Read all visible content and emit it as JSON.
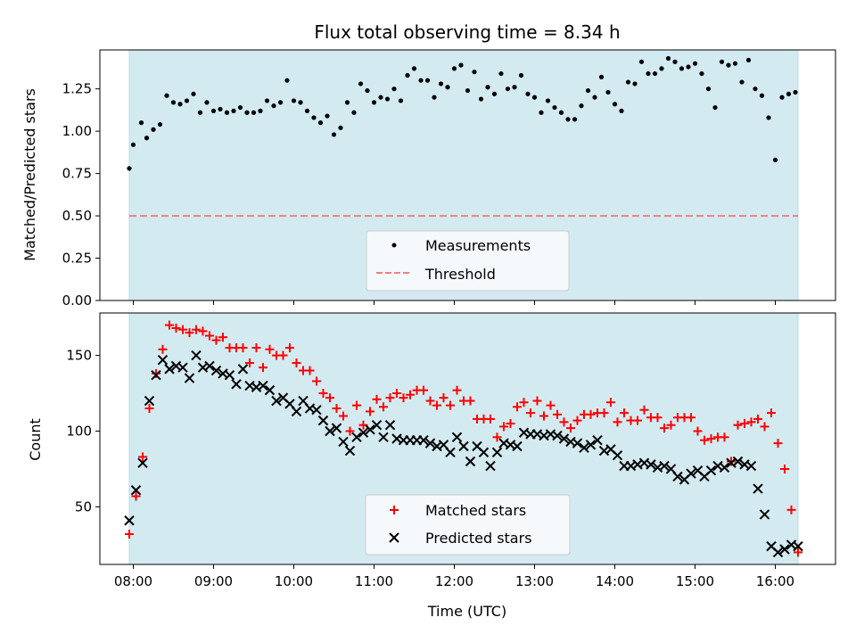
{
  "chart_data": [
    {
      "type": "scatter",
      "title": "Flux total observing time = 8.34 h",
      "xlabel": "",
      "ylabel": "Matched/Predicted stars",
      "xlim": [
        "07:35",
        "16:45"
      ],
      "ylim": [
        0,
        1.48
      ],
      "yticks": [
        "0.00",
        "0.25",
        "0.50",
        "0.75",
        "1.00",
        "1.25"
      ],
      "observing_span": [
        "07:57",
        "16:17"
      ],
      "span_color": "#d3eaf0",
      "legend_position": "bottom-center",
      "series": [
        {
          "name": "Measurements",
          "marker": "dot",
          "color": "#000000",
          "x": [
            "07:57",
            "08:00",
            "08:06",
            "08:10",
            "08:15",
            "08:20",
            "08:25",
            "08:30",
            "08:35",
            "08:40",
            "08:45",
            "08:50",
            "08:55",
            "09:00",
            "09:05",
            "09:10",
            "09:15",
            "09:20",
            "09:25",
            "09:30",
            "09:35",
            "09:40",
            "09:45",
            "09:50",
            "09:55",
            "10:00",
            "10:05",
            "10:10",
            "10:15",
            "10:20",
            "10:25",
            "10:30",
            "10:35",
            "10:40",
            "10:45",
            "10:50",
            "10:55",
            "11:00",
            "11:05",
            "11:10",
            "11:15",
            "11:20",
            "11:25",
            "11:30",
            "11:35",
            "11:40",
            "11:45",
            "11:50",
            "11:55",
            "12:00",
            "12:05",
            "12:10",
            "12:15",
            "12:20",
            "12:25",
            "12:30",
            "12:35",
            "12:40",
            "12:45",
            "12:50",
            "12:55",
            "13:00",
            "13:05",
            "13:10",
            "13:15",
            "13:20",
            "13:25",
            "13:30",
            "13:35",
            "13:40",
            "13:45",
            "13:50",
            "13:55",
            "14:00",
            "14:05",
            "14:10",
            "14:15",
            "14:20",
            "14:25",
            "14:30",
            "14:35",
            "14:40",
            "14:45",
            "14:50",
            "14:55",
            "15:00",
            "15:05",
            "15:10",
            "15:15",
            "15:20",
            "15:25",
            "15:30",
            "15:35",
            "15:40",
            "15:45",
            "15:50",
            "15:55",
            "16:00",
            "16:05",
            "16:10",
            "16:15"
          ],
          "y": [
            0.78,
            0.92,
            1.05,
            0.96,
            1.01,
            1.04,
            1.21,
            1.17,
            1.16,
            1.18,
            1.22,
            1.11,
            1.17,
            1.12,
            1.13,
            1.11,
            1.12,
            1.14,
            1.11,
            1.11,
            1.12,
            1.18,
            1.15,
            1.17,
            1.3,
            1.18,
            1.17,
            1.12,
            1.08,
            1.05,
            1.09,
            0.98,
            1.02,
            1.17,
            1.11,
            1.28,
            1.24,
            1.17,
            1.2,
            1.19,
            1.25,
            1.18,
            1.33,
            1.37,
            1.3,
            1.3,
            1.2,
            1.28,
            1.26,
            1.37,
            1.39,
            1.24,
            1.35,
            1.19,
            1.26,
            1.22,
            1.34,
            1.25,
            1.26,
            1.33,
            1.22,
            1.2,
            1.11,
            1.18,
            1.14,
            1.11,
            1.07,
            1.07,
            1.15,
            1.24,
            1.2,
            1.32,
            1.23,
            1.16,
            1.12,
            1.29,
            1.28,
            1.41,
            1.34,
            1.34,
            1.37,
            1.43,
            1.41,
            1.37,
            1.38,
            1.4,
            1.34,
            1.25,
            1.14,
            1.41,
            1.39,
            1.4,
            1.29,
            1.42,
            1.25,
            1.21,
            1.08,
            0.83,
            1.2,
            1.22,
            1.23
          ]
        }
      ],
      "threshold": {
        "name": "Threshold",
        "y": 0.5,
        "color": "#f08080",
        "style": "dashed"
      }
    },
    {
      "type": "scatter",
      "title": "",
      "xlabel": "Time (UTC)",
      "ylabel": "Count",
      "xlim": [
        "07:35",
        "16:45"
      ],
      "ylim": [
        12,
        178
      ],
      "xticks": [
        "08:00",
        "09:00",
        "10:00",
        "11:00",
        "12:00",
        "13:00",
        "14:00",
        "15:00",
        "16:00"
      ],
      "yticks": [
        "50",
        "100",
        "150"
      ],
      "observing_span": [
        "07:57",
        "16:17"
      ],
      "span_color": "#d3eaf0",
      "legend_position": "bottom-center",
      "series": [
        {
          "name": "Matched stars",
          "marker": "plus",
          "color": "#ff0000",
          "x": [
            "07:57",
            "08:02",
            "08:07",
            "08:12",
            "08:17",
            "08:22",
            "08:27",
            "08:32",
            "08:37",
            "08:42",
            "08:47",
            "08:52",
            "08:57",
            "09:02",
            "09:07",
            "09:12",
            "09:17",
            "09:22",
            "09:27",
            "09:32",
            "09:37",
            "09:42",
            "09:47",
            "09:52",
            "09:57",
            "10:02",
            "10:07",
            "10:12",
            "10:17",
            "10:22",
            "10:27",
            "10:32",
            "10:37",
            "10:42",
            "10:47",
            "10:52",
            "10:57",
            "11:02",
            "11:07",
            "11:12",
            "11:17",
            "11:22",
            "11:27",
            "11:32",
            "11:37",
            "11:42",
            "11:47",
            "11:52",
            "11:57",
            "12:02",
            "12:07",
            "12:12",
            "12:17",
            "12:22",
            "12:27",
            "12:32",
            "12:37",
            "12:42",
            "12:47",
            "12:52",
            "12:57",
            "13:02",
            "13:07",
            "13:12",
            "13:17",
            "13:22",
            "13:27",
            "13:32",
            "13:37",
            "13:42",
            "13:47",
            "13:52",
            "13:57",
            "14:02",
            "14:07",
            "14:12",
            "14:17",
            "14:22",
            "14:27",
            "14:32",
            "14:37",
            "14:42",
            "14:47",
            "14:52",
            "14:57",
            "15:02",
            "15:07",
            "15:12",
            "15:17",
            "15:22",
            "15:27",
            "15:32",
            "15:37",
            "15:42",
            "15:47",
            "15:52",
            "15:57",
            "16:02",
            "16:07",
            "16:12",
            "16:17"
          ],
          "y": [
            32,
            57,
            83,
            115,
            138,
            154,
            170,
            168,
            167,
            165,
            167,
            166,
            163,
            160,
            162,
            155,
            155,
            155,
            145,
            155,
            142,
            154,
            150,
            150,
            155,
            145,
            140,
            140,
            133,
            125,
            122,
            115,
            110,
            100,
            117,
            104,
            113,
            121,
            116,
            122,
            125,
            122,
            124,
            127,
            127,
            120,
            117,
            122,
            117,
            127,
            120,
            120,
            108,
            108,
            108,
            96,
            103,
            105,
            116,
            119,
            112,
            120,
            110,
            117,
            111,
            106,
            102,
            107,
            111,
            111,
            112,
            112,
            119,
            106,
            112,
            107,
            107,
            114,
            109,
            109,
            102,
            104,
            109,
            109,
            109,
            100,
            94,
            95,
            96,
            96,
            80,
            104,
            105,
            106,
            108,
            103,
            112,
            92,
            75,
            48,
            20
          ]
        },
        {
          "name": "Predicted stars",
          "marker": "x",
          "color": "#000000",
          "x": [
            "07:57",
            "08:02",
            "08:07",
            "08:12",
            "08:17",
            "08:22",
            "08:27",
            "08:32",
            "08:37",
            "08:42",
            "08:47",
            "08:52",
            "08:57",
            "09:02",
            "09:07",
            "09:12",
            "09:17",
            "09:22",
            "09:27",
            "09:32",
            "09:37",
            "09:42",
            "09:47",
            "09:52",
            "09:57",
            "10:02",
            "10:07",
            "10:12",
            "10:17",
            "10:22",
            "10:27",
            "10:32",
            "10:37",
            "10:42",
            "10:47",
            "10:52",
            "10:57",
            "11:02",
            "11:07",
            "11:12",
            "11:17",
            "11:22",
            "11:27",
            "11:32",
            "11:37",
            "11:42",
            "11:47",
            "11:52",
            "11:57",
            "12:02",
            "12:07",
            "12:12",
            "12:17",
            "12:22",
            "12:27",
            "12:32",
            "12:37",
            "12:42",
            "12:47",
            "12:52",
            "12:57",
            "13:02",
            "13:07",
            "13:12",
            "13:17",
            "13:22",
            "13:27",
            "13:32",
            "13:37",
            "13:42",
            "13:47",
            "13:52",
            "13:57",
            "14:02",
            "14:07",
            "14:12",
            "14:17",
            "14:22",
            "14:27",
            "14:32",
            "14:37",
            "14:42",
            "14:47",
            "14:52",
            "14:57",
            "15:02",
            "15:07",
            "15:12",
            "15:17",
            "15:22",
            "15:27",
            "15:32",
            "15:37",
            "15:42",
            "15:47",
            "15:52",
            "15:57",
            "16:02",
            "16:07",
            "16:12",
            "16:17"
          ],
          "y": [
            41,
            61,
            79,
            120,
            137,
            147,
            141,
            143,
            142,
            135,
            150,
            142,
            143,
            140,
            138,
            137,
            131,
            141,
            130,
            129,
            130,
            127,
            120,
            122,
            118,
            113,
            120,
            115,
            114,
            107,
            100,
            102,
            93,
            87,
            96,
            99,
            101,
            104,
            96,
            104,
            95,
            94,
            94,
            94,
            94,
            92,
            90,
            91,
            86,
            96,
            90,
            80,
            90,
            86,
            77,
            86,
            92,
            91,
            90,
            99,
            98,
            98,
            97,
            98,
            97,
            95,
            93,
            92,
            89,
            91,
            94,
            87,
            88,
            84,
            77,
            77,
            78,
            79,
            78,
            76,
            77,
            75,
            70,
            68,
            72,
            74,
            70,
            74,
            77,
            76,
            79,
            80,
            78,
            77,
            62,
            45,
            24,
            20,
            22,
            25,
            24
          ]
        }
      ]
    }
  ]
}
